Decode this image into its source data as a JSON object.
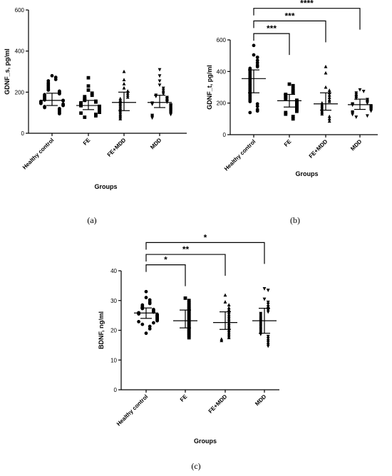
{
  "chart_data": [
    {
      "id": "a",
      "type": "scatter",
      "caption": "(a)",
      "ylabel": "GDNF_s, pg/ml",
      "xlabel": "Groups",
      "ylim": [
        0,
        600
      ],
      "yticks": [
        0,
        200,
        400,
        600
      ],
      "categories": [
        "Healthy control",
        "FE",
        "FE+MDD",
        "MDD"
      ],
      "markers": [
        "circle",
        "square",
        "triangle-up",
        "triangle-down"
      ],
      "summary": [
        {
          "median": 160,
          "low": 135,
          "high": 195
        },
        {
          "median": 135,
          "low": 115,
          "high": 160
        },
        {
          "median": 150,
          "low": 110,
          "high": 200
        },
        {
          "median": 150,
          "low": 125,
          "high": 185
        }
      ],
      "series": [
        {
          "values": [
            280,
            272,
            262,
            255,
            245,
            238,
            230,
            222,
            215,
            210,
            205,
            200,
            196,
            192,
            188,
            184,
            180,
            176,
            172,
            168,
            165,
            162,
            160,
            158,
            155,
            152,
            148,
            145,
            142,
            138,
            135,
            130,
            125,
            120,
            115,
            110,
            105,
            100,
            95
          ]
        },
        {
          "values": [
            270,
            230,
            210,
            195,
            185,
            178,
            170,
            165,
            160,
            156,
            152,
            148,
            144,
            140,
            137,
            134,
            131,
            128,
            125,
            122,
            119,
            116,
            113,
            110,
            106,
            102,
            98,
            92,
            85,
            78
          ]
        },
        {
          "values": [
            300,
            260,
            240,
            220,
            205,
            195,
            185,
            175,
            168,
            160,
            152,
            145,
            138,
            130,
            122,
            115,
            108,
            100,
            92,
            85,
            78,
            70
          ]
        },
        {
          "values": [
            310,
            280,
            255,
            235,
            220,
            210,
            200,
            192,
            186,
            180,
            175,
            170,
            165,
            160,
            156,
            152,
            148,
            145,
            142,
            139,
            136,
            133,
            130,
            127,
            124,
            121,
            118,
            115,
            112,
            109,
            106,
            103,
            100,
            96,
            92,
            88,
            84,
            80,
            75
          ]
        }
      ],
      "comparisons": []
    },
    {
      "id": "b",
      "type": "scatter",
      "caption": "(b)",
      "ylabel": "GDNF_t, pg/ml",
      "xlabel": "Groups",
      "ylim": [
        0,
        600
      ],
      "yticks": [
        0,
        200,
        400,
        600
      ],
      "categories": [
        "Healthy control",
        "FE",
        "FE+MDD",
        "MDD"
      ],
      "markers": [
        "circle",
        "square",
        "triangle-up",
        "triangle-down"
      ],
      "summary": [
        {
          "median": 355,
          "low": 265,
          "high": 410
        },
        {
          "median": 215,
          "low": 175,
          "high": 255
        },
        {
          "median": 195,
          "low": 155,
          "high": 265
        },
        {
          "median": 190,
          "low": 160,
          "high": 225
        }
      ],
      "series": [
        {
          "values": [
            565,
            505,
            490,
            470,
            455,
            440,
            430,
            420,
            410,
            400,
            390,
            380,
            370,
            360,
            350,
            340,
            330,
            320,
            310,
            300,
            290,
            280,
            270,
            260,
            250,
            240,
            230,
            220,
            210,
            195,
            180,
            160,
            150,
            140
          ]
        },
        {
          "values": [
            320,
            310,
            290,
            275,
            265,
            255,
            248,
            240,
            232,
            225,
            218,
            212,
            206,
            200,
            194,
            188,
            182,
            176,
            170,
            164,
            156,
            148,
            140,
            130,
            115,
            100
          ]
        },
        {
          "values": [
            430,
            390,
            300,
            280,
            265,
            250,
            235,
            220,
            210,
            200,
            190,
            180,
            170,
            160,
            150,
            140,
            130,
            115,
            100,
            85
          ]
        },
        {
          "values": [
            285,
            275,
            265,
            255,
            245,
            238,
            230,
            224,
            218,
            212,
            206,
            200,
            196,
            192,
            188,
            184,
            180,
            176,
            172,
            168,
            164,
            160,
            155,
            150,
            145,
            140,
            135,
            128,
            120,
            112
          ]
        }
      ],
      "comparisons": [
        {
          "to": 1,
          "label": "***",
          "level": 640
        },
        {
          "to": 2,
          "label": "***",
          "level": 720
        },
        {
          "to": 3,
          "label": "****",
          "level": 800
        }
      ]
    },
    {
      "id": "c",
      "type": "scatter",
      "caption": "(c)",
      "ylabel": "BDNF, ng/ml",
      "xlabel": "Groups",
      "ylim": [
        0,
        40
      ],
      "yticks": [
        0,
        10,
        20,
        30,
        40
      ],
      "categories": [
        "Healthy control",
        "FE",
        "FE+MDD",
        "MDD"
      ],
      "markers": [
        "circle",
        "square",
        "triangle-up",
        "triangle-down"
      ],
      "summary": [
        {
          "median": 25.8,
          "low": 24.0,
          "high": 27.5
        },
        {
          "median": 23.2,
          "low": 20.8,
          "high": 26.8
        },
        {
          "median": 22.6,
          "low": 20.3,
          "high": 26.2
        },
        {
          "median": 23.2,
          "low": 19.0,
          "high": 27.4
        }
      ],
      "series": [
        {
          "values": [
            33.0,
            31.0,
            30.2,
            29.5,
            29.0,
            28.5,
            28.0,
            27.6,
            27.3,
            27.0,
            26.7,
            26.4,
            26.1,
            25.9,
            25.7,
            25.5,
            25.3,
            25.1,
            24.9,
            24.7,
            24.5,
            24.3,
            24.1,
            23.9,
            23.7,
            23.5,
            23.2,
            22.9,
            22.5,
            22.0,
            21.3,
            20.5,
            19.0
          ]
        },
        {
          "values": [
            30.8,
            30.0,
            29.2,
            28.5,
            27.8,
            27.2,
            26.6,
            26.0,
            25.4,
            24.8,
            24.2,
            23.6,
            23.0,
            22.4,
            21.8,
            21.2,
            20.6,
            20.0,
            19.4,
            18.8,
            18.2,
            17.5
          ]
        },
        {
          "values": [
            31.8,
            29.5,
            28.5,
            27.5,
            26.8,
            26.0,
            25.3,
            24.7,
            24.1,
            23.5,
            22.9,
            22.3,
            21.7,
            21.1,
            20.5,
            19.9,
            19.3,
            18.7,
            18.1,
            17.5,
            17.0,
            16.5
          ]
        },
        {
          "values": [
            34.0,
            33.5,
            30.5,
            29.5,
            28.8,
            28.0,
            27.4,
            26.8,
            26.2,
            25.7,
            25.2,
            24.7,
            24.2,
            23.7,
            23.2,
            22.7,
            22.2,
            21.7,
            21.2,
            20.7,
            20.2,
            19.7,
            19.2,
            18.7,
            18.0,
            17.3,
            16.6,
            16.0,
            15.3,
            14.7
          ]
        }
      ],
      "comparisons": [
        {
          "to": 1,
          "label": "*",
          "level": 42.0
        },
        {
          "to": 2,
          "label": "**",
          "level": 45.5
        },
        {
          "to": 3,
          "label": "*",
          "level": 49.5
        }
      ]
    }
  ]
}
